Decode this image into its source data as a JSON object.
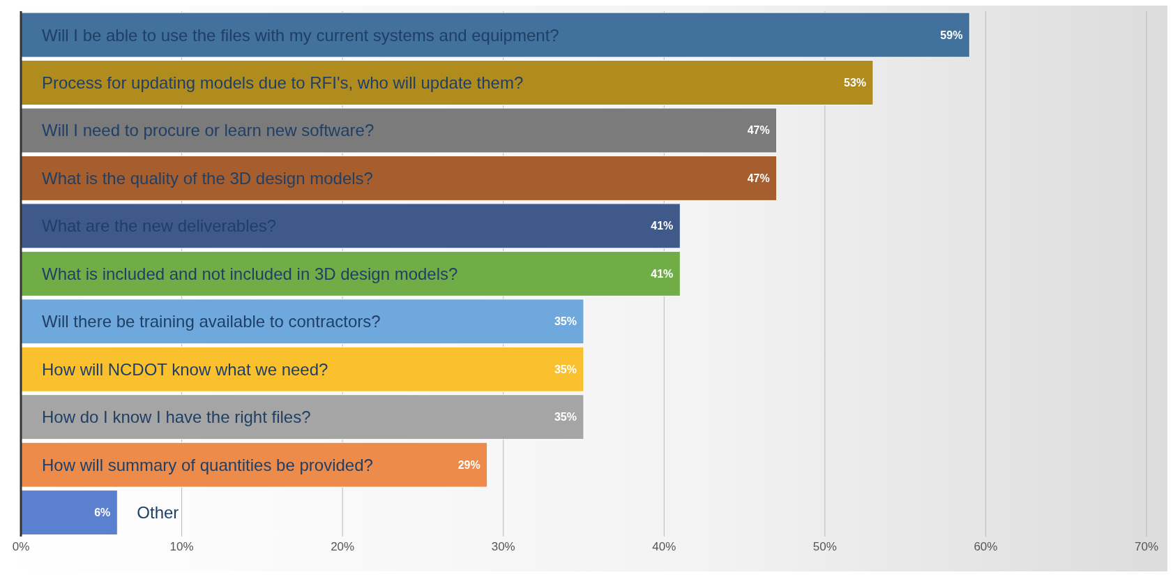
{
  "chart_data": {
    "type": "bar",
    "orientation": "horizontal",
    "categories": [
      "Will I be able to use the files with my current systems and equipment?",
      "Process for updating models due to RFI's, who will update them?",
      "Will I need to procure or learn new software?",
      "What is the quality of the 3D design models?",
      "What are the new deliverables?",
      "What is included and not included in 3D design models?",
      "Will there be training available to contractors?",
      "How will NCDOT know what we need?",
      "How do I know I have the right files?",
      "How will summary of quantities be provided?",
      "Other"
    ],
    "values": [
      59,
      53,
      47,
      47,
      41,
      41,
      35,
      35,
      35,
      29,
      6
    ],
    "value_labels": [
      "59%",
      "53%",
      "47%",
      "47%",
      "41%",
      "41%",
      "35%",
      "35%",
      "35%",
      "29%",
      "6%"
    ],
    "colors": [
      "#41719c",
      "#b08c1e",
      "#7b7b7b",
      "#a65e2e",
      "#3f5a8a",
      "#70ad47",
      "#6fa8dc",
      "#fbc02d",
      "#a5a5a5",
      "#ed8b4a",
      "#5b80d0"
    ],
    "xlim": [
      0,
      70
    ],
    "xticks": [
      {
        "value": 0,
        "label": "0%"
      },
      {
        "value": 10,
        "label": "10%"
      },
      {
        "value": 20,
        "label": "20%"
      },
      {
        "value": 30,
        "label": "30%"
      },
      {
        "value": 40,
        "label": "40%"
      },
      {
        "value": 50,
        "label": "50%"
      },
      {
        "value": 60,
        "label": "60%"
      },
      {
        "value": 70,
        "label": "70%"
      }
    ],
    "grid": "x"
  }
}
